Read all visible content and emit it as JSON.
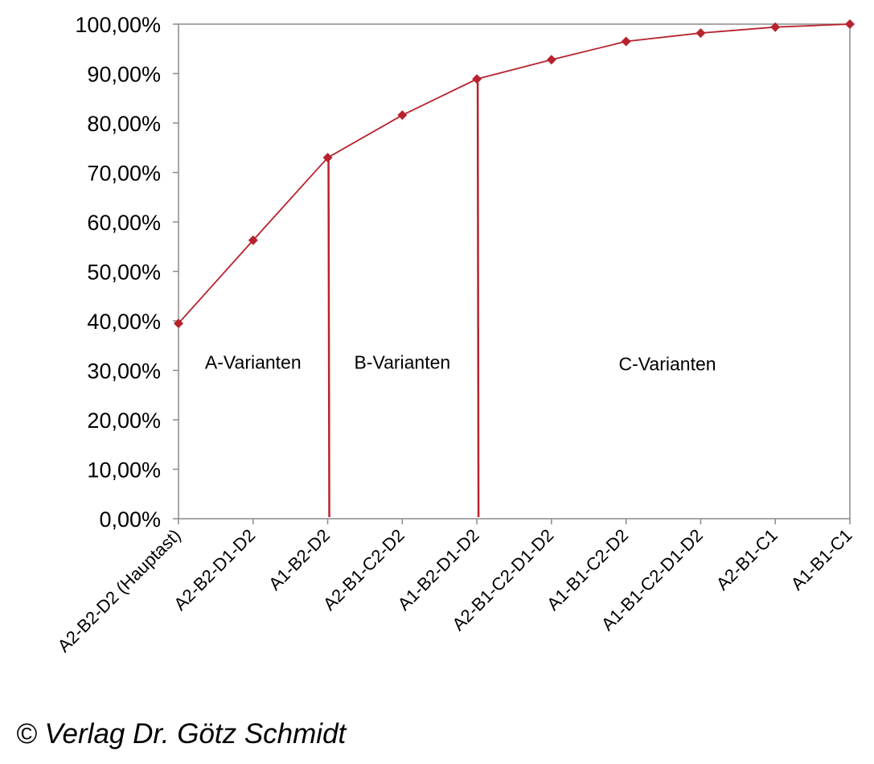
{
  "chart_data": {
    "type": "line",
    "categories": [
      "A2-B2-D2 (Hauptast)",
      "A2-B2-D1-D2",
      "A1-B2-D2",
      "A2-B1-C2-D2",
      "A1-B2-D1-D2",
      "A2-B1-C2-D1-D2",
      "A1-B1-C2-D2",
      "A1-B1-C2-D1-D2",
      "A2-B1-C1",
      "A1-B1-C1"
    ],
    "series": [
      {
        "values": [
          39.5,
          56.3,
          73.0,
          81.6,
          88.9,
          92.8,
          96.5,
          98.2,
          99.4,
          100.0
        ]
      }
    ],
    "y_ticks": [
      "0,00%",
      "10,00%",
      "20,00%",
      "30,00%",
      "40,00%",
      "50,00%",
      "60,00%",
      "70,00%",
      "80,00%",
      "90,00%",
      "100,00%"
    ],
    "ylim": [
      0,
      100
    ],
    "grid": false,
    "series_color": "#b8222e",
    "dividers": [
      {
        "after_category": "A1-B2-D2"
      },
      {
        "after_category": "A1-B2-D1-D2"
      }
    ],
    "region_labels": [
      "A-Varianten",
      "B-Varianten",
      "C-Varianten"
    ]
  },
  "copyright": "© Verlag Dr. Götz Schmidt"
}
